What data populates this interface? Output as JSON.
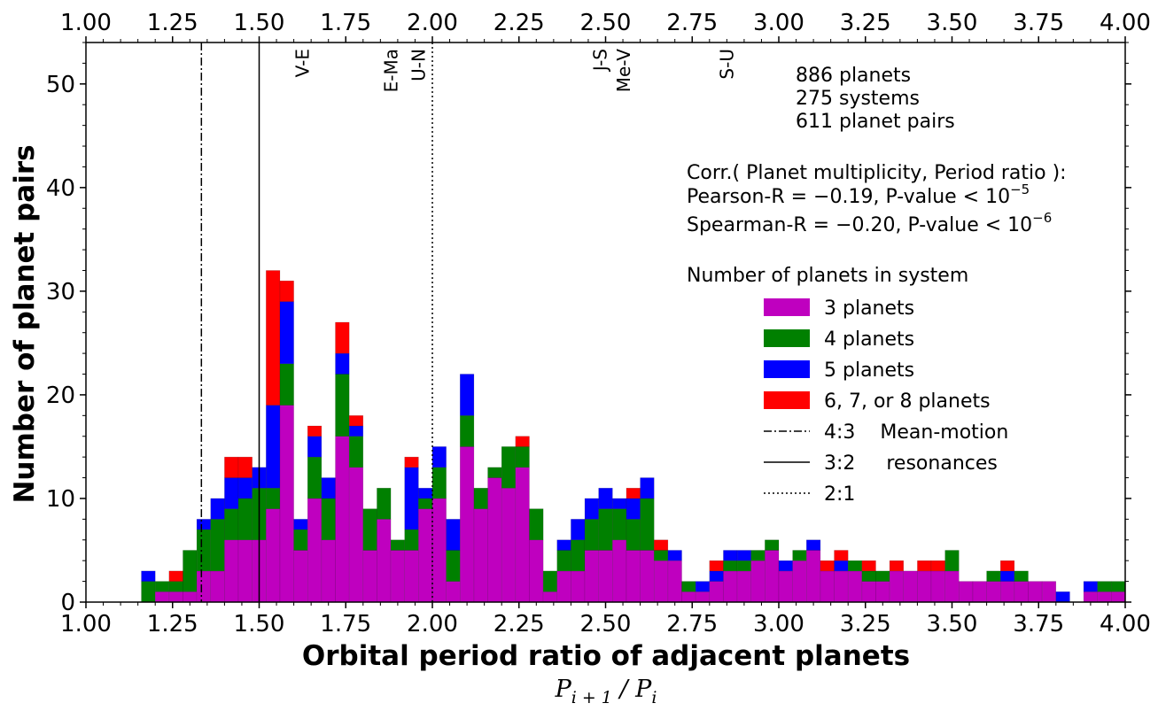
{
  "chart_data": {
    "type": "bar",
    "stacked": true,
    "xlabel": "Orbital period ratio of adjacent planets",
    "xlabel_math": {
      "base": "P",
      "sub_num": "i + 1",
      "slash": " / ",
      "base2": "P",
      "sub_den": "i"
    },
    "ylabel": "Number of planet pairs",
    "xlim": [
      1.0,
      4.0
    ],
    "ylim": [
      0,
      54
    ],
    "x_ticks": [
      1.0,
      1.25,
      1.5,
      1.75,
      2.0,
      2.25,
      2.5,
      2.75,
      3.0,
      3.25,
      3.5,
      3.75,
      4.0
    ],
    "x_tick_labels": [
      "1.00",
      "1.25",
      "1.50",
      "1.75",
      "2.00",
      "2.25",
      "2.50",
      "2.75",
      "3.00",
      "3.25",
      "3.50",
      "3.75",
      "4.00"
    ],
    "y_ticks": [
      0,
      10,
      20,
      30,
      40,
      50
    ],
    "y_tick_labels": [
      "0",
      "10",
      "20",
      "30",
      "40",
      "50"
    ],
    "bin_width": 0.04,
    "bin_start": 1.0,
    "series": [
      {
        "name": "3 planets",
        "color": "#bf00bf",
        "values": [
          0,
          0,
          0,
          0,
          0,
          0,
          0,
          0,
          0,
          0,
          0,
          0,
          0,
          1,
          1,
          1,
          2,
          3,
          3,
          6,
          6,
          6,
          9,
          19,
          5,
          10,
          6,
          16,
          13,
          5,
          8,
          5,
          5,
          9,
          10,
          2,
          15,
          9,
          12,
          11,
          13,
          6,
          1,
          3,
          3,
          5,
          5,
          6,
          5,
          5,
          4,
          4,
          1,
          1,
          2,
          3,
          3,
          4,
          5,
          3,
          4,
          5,
          3,
          3,
          3,
          2,
          2,
          3,
          3,
          3,
          3,
          3,
          2,
          2,
          2,
          2,
          2,
          2,
          0,
          0,
          1,
          0,
          0,
          0,
          1,
          0,
          0,
          0,
          1,
          0,
          0,
          0,
          0,
          1,
          1,
          1
        ]
      },
      {
        "name": "4 planets",
        "color": "#008000",
        "values": [
          0,
          0,
          0,
          0,
          0,
          0,
          0,
          0,
          0,
          0,
          0,
          0,
          0,
          0,
          0,
          0,
          0,
          0,
          0,
          0,
          0,
          0,
          0,
          0,
          0,
          0,
          0,
          0,
          0,
          0,
          0,
          0,
          0,
          0,
          0,
          0,
          0,
          0,
          0,
          0,
          0,
          0,
          1,
          1,
          0,
          4,
          4,
          5,
          3,
          4,
          5,
          2,
          4,
          2,
          4,
          4,
          6,
          3,
          4,
          3,
          1,
          2,
          1,
          3,
          3,
          3,
          2,
          1,
          4,
          2,
          3,
          2,
          2,
          3,
          3,
          4,
          3,
          3,
          5,
          1,
          0,
          1,
          0,
          0,
          1,
          1,
          1,
          1,
          0,
          1,
          0,
          0,
          0,
          1,
          1,
          1
        ]
      },
      {
        "name": "5 planets",
        "color": "#0000ff",
        "values": [
          0,
          0,
          0,
          0,
          0,
          0,
          0,
          0,
          0,
          0,
          0,
          0,
          0,
          0,
          0,
          0,
          0,
          0,
          0,
          0,
          0,
          0,
          0,
          0,
          0,
          0,
          0,
          0,
          0,
          0,
          0,
          0,
          0,
          0,
          0,
          0,
          0,
          0,
          0,
          0,
          0,
          0,
          0,
          0,
          0,
          0,
          0,
          0,
          0,
          0,
          0,
          0,
          0,
          0,
          0,
          0,
          0,
          0,
          0,
          0,
          0,
          0,
          0,
          0,
          0,
          0,
          0,
          0,
          0,
          0,
          0,
          0,
          0,
          0,
          0,
          0,
          0,
          0,
          0,
          0,
          0,
          0,
          0,
          0,
          0,
          0,
          0,
          0,
          0,
          0,
          0,
          0,
          0,
          0,
          0,
          0
        ]
      },
      {
        "name": "6, 7, or 8 planets",
        "color": "#ff0000",
        "values": [
          0,
          0,
          0,
          0,
          0,
          0,
          0,
          0,
          0,
          0,
          0,
          0,
          0,
          0,
          0,
          0,
          0,
          0,
          0,
          0,
          0,
          0,
          0,
          0,
          0,
          0,
          0,
          0,
          0,
          0,
          0,
          0,
          0,
          0,
          0,
          0,
          0,
          0,
          0,
          0,
          0,
          0,
          0,
          0,
          0,
          0,
          0,
          0,
          0,
          0,
          0,
          0,
          0,
          0,
          0,
          0,
          0,
          0,
          0,
          0,
          0,
          0,
          0,
          0,
          0,
          0,
          0,
          0,
          0,
          0,
          0,
          0,
          0,
          0,
          0,
          0,
          0,
          0,
          0,
          0,
          0,
          0,
          0,
          0,
          0,
          0,
          0,
          0,
          0,
          0,
          0,
          0,
          0,
          0,
          0,
          0
        ]
      }
    ],
    "stack_tops": {
      "bins_x": [
        1.16,
        1.2,
        1.24,
        1.28,
        1.32,
        1.36,
        1.4,
        1.44,
        1.48,
        1.52,
        1.56,
        1.6,
        1.64,
        1.68,
        1.72,
        1.76,
        1.8,
        1.84,
        1.88,
        1.92,
        1.96,
        2.0,
        2.04,
        2.08,
        2.12,
        2.16,
        2.2,
        2.24,
        2.28,
        2.32,
        2.36,
        2.4,
        2.44,
        2.48,
        2.52,
        2.56,
        2.6,
        2.64,
        2.68,
        2.72,
        2.76,
        2.8,
        2.84,
        2.88,
        2.92,
        2.96,
        3.0,
        3.04,
        3.08,
        3.12,
        3.16,
        3.2,
        3.24,
        3.28,
        3.32,
        3.36,
        3.4,
        3.44,
        3.48,
        3.52,
        3.56,
        3.6,
        3.64,
        3.68,
        3.72,
        3.76,
        3.8,
        3.84,
        3.88,
        3.92,
        3.96
      ],
      "p3": [
        0,
        1,
        1,
        1,
        3,
        3,
        6,
        6,
        6,
        9,
        19,
        5,
        10,
        6,
        16,
        13,
        5,
        8,
        5,
        5,
        9,
        10,
        2,
        15,
        9,
        12,
        11,
        13,
        6,
        1,
        3,
        3,
        5,
        5,
        6,
        5,
        5,
        4,
        4,
        1,
        1,
        2,
        3,
        3,
        4,
        5,
        3,
        4,
        5,
        3,
        3,
        3,
        2,
        2,
        3,
        3,
        3,
        3,
        3,
        2,
        2,
        2,
        2,
        2,
        2,
        2,
        0,
        0,
        1,
        1,
        1
      ],
      "p4": [
        2,
        1,
        1,
        4,
        4,
        5,
        3,
        4,
        5,
        2,
        4,
        2,
        4,
        4,
        6,
        3,
        4,
        3,
        1,
        2,
        1,
        3,
        3,
        3,
        2,
        1,
        4,
        2,
        3,
        2,
        2,
        3,
        3,
        4,
        3,
        3,
        5,
        1,
        0,
        1,
        0,
        0,
        1,
        1,
        1,
        1,
        0,
        1,
        0,
        0,
        0,
        1,
        1,
        1,
        0,
        0,
        0,
        0,
        2,
        0,
        0,
        1,
        0,
        1,
        0,
        0,
        0,
        0,
        0,
        1,
        1
      ],
      "p5": [
        1,
        0,
        0,
        0,
        1,
        2,
        3,
        2,
        2,
        8,
        6,
        1,
        2,
        2,
        2,
        1,
        0,
        0,
        0,
        6,
        1,
        2,
        3,
        4,
        0,
        0,
        0,
        0,
        0,
        0,
        1,
        2,
        2,
        2,
        1,
        2,
        2,
        0,
        1,
        0,
        1,
        1,
        1,
        1,
        0,
        0,
        1,
        0,
        1,
        0,
        1,
        0,
        0,
        0,
        0,
        0,
        0,
        0,
        0,
        0,
        0,
        0,
        1,
        0,
        0,
        0,
        1,
        0,
        1,
        0,
        0
      ],
      "p678": [
        0,
        0,
        1,
        0,
        0,
        0,
        2,
        2,
        0,
        13,
        2,
        0,
        1,
        0,
        3,
        1,
        0,
        0,
        0,
        1,
        0,
        0,
        0,
        0,
        0,
        0,
        0,
        1,
        0,
        0,
        0,
        0,
        0,
        0,
        0,
        1,
        0,
        1,
        0,
        0,
        0,
        1,
        0,
        0,
        0,
        0,
        0,
        0,
        0,
        1,
        1,
        0,
        1,
        0,
        1,
        0,
        1,
        1,
        0,
        0,
        0,
        0,
        1,
        0,
        0,
        0,
        0,
        0,
        0,
        0,
        0
      ]
    },
    "vlines": [
      {
        "x": 1.3333,
        "style": "dashdot"
      },
      {
        "x": 1.5,
        "style": "solid"
      },
      {
        "x": 2.0,
        "style": "dotted"
      }
    ],
    "solar_system_pairs": [
      {
        "label": "V-E",
        "x": 1.625
      },
      {
        "label": "E-Ma",
        "x": 1.881
      },
      {
        "label": "U-N",
        "x": 1.96
      },
      {
        "label": "J-S",
        "x": 2.485
      },
      {
        "label": "Me-V",
        "x": 2.553
      },
      {
        "label": "S-U",
        "x": 2.85
      }
    ],
    "stats_lines": [
      "886 planets",
      "275 systems",
      "611 planet pairs"
    ],
    "corr": {
      "title": "Corr.( Planet multiplicity, Period ratio ):",
      "pearson": "Pearson-R = −0.19,  P-value < 10",
      "pearson_exp": "−5",
      "spearman": "Spearman-R = −0.20,  P-value < 10",
      "spearman_exp": "−6"
    },
    "legend": {
      "title": "Number of planets in system",
      "placement": "right",
      "entries": [
        {
          "label": "3 planets",
          "type": "patch",
          "color": "#bf00bf"
        },
        {
          "label": "4 planets",
          "type": "patch",
          "color": "#008000"
        },
        {
          "label": "5 planets",
          "type": "patch",
          "color": "#0000ff"
        },
        {
          "label": "6, 7, or 8 planets",
          "type": "patch",
          "color": "#ff0000"
        },
        {
          "label": "4:3    Mean-motion",
          "type": "line",
          "style": "dashdot"
        },
        {
          "label": "3:2     resonances",
          "type": "line",
          "style": "solid"
        },
        {
          "label": "2:1",
          "type": "line",
          "style": "dotted"
        }
      ]
    },
    "grid": false
  }
}
